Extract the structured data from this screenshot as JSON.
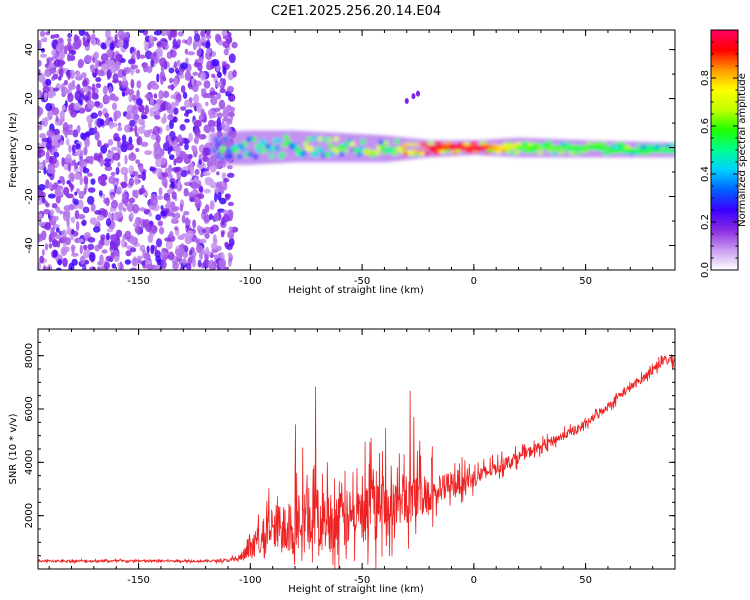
{
  "chart_data": [
    {
      "type": "heatmap",
      "title": "C2E1.2025.256.20.14.E04",
      "xlabel": "Height of straight line (km)",
      "ylabel": "Frequency (Hz)",
      "xlim": [
        -195,
        90
      ],
      "ylim": [
        -50,
        48
      ],
      "xticks": [
        -150,
        -100,
        -50,
        0,
        50
      ],
      "yticks": [
        -40,
        -20,
        0,
        20,
        40
      ],
      "noise_region": {
        "x": [
          -195,
          -107
        ],
        "y": [
          -50,
          48
        ]
      },
      "signal_band": [
        {
          "x": -118,
          "y0": -7,
          "y1": 6,
          "amp": 0.25
        },
        {
          "x": -100,
          "y0": -7,
          "y1": 7,
          "amp": 0.35
        },
        {
          "x": -80,
          "y0": -6,
          "y1": 7,
          "amp": 0.4
        },
        {
          "x": -60,
          "y0": -6,
          "y1": 6,
          "amp": 0.4
        },
        {
          "x": -40,
          "y0": -6,
          "y1": 5,
          "amp": 0.45
        },
        {
          "x": -20,
          "y0": -4,
          "y1": 3,
          "amp": 0.9
        },
        {
          "x": 0,
          "y0": -3,
          "y1": 3,
          "amp": 0.95
        },
        {
          "x": 20,
          "y0": -4,
          "y1": 4,
          "amp": 0.6
        },
        {
          "x": 50,
          "y0": -4,
          "y1": 3,
          "amp": 0.55
        },
        {
          "x": 90,
          "y0": -4,
          "y1": 2,
          "amp": 0.5
        }
      ],
      "colorbar": {
        "label": "Normalized spectral amplitude",
        "range": [
          0.0,
          1.0
        ],
        "ticks": [
          0.0,
          0.2,
          0.4,
          0.6,
          0.8
        ],
        "tick_labels": [
          "0.0",
          "0.2",
          "0.4",
          "0.6",
          "0.8"
        ],
        "colors": [
          "#ffffff",
          "#c99af0",
          "#8a2be2",
          "#3a00ff",
          "#0060ff",
          "#00d0ff",
          "#00ff90",
          "#20ff00",
          "#c0ff00",
          "#ffff00",
          "#ff9900",
          "#ff0000",
          "#ff0066"
        ]
      }
    },
    {
      "type": "line",
      "xlabel": "Height of straight line (km)",
      "ylabel": "SNR (10 * v/v)",
      "xlim": [
        -195,
        90
      ],
      "ylim": [
        0,
        9000
      ],
      "xticks": [
        -150,
        -100,
        -50,
        0,
        50
      ],
      "yticks": [
        2000,
        4000,
        6000,
        8000
      ],
      "color": "#ee2222",
      "series": [
        {
          "name": "SNR",
          "x": [
            -195,
            -180,
            -160,
            -140,
            -120,
            -110,
            -105,
            -100,
            -95,
            -90,
            -85,
            -80,
            -75,
            -70,
            -65,
            -60,
            -55,
            -50,
            -45,
            -40,
            -35,
            -30,
            -25,
            -20,
            -15,
            -10,
            -5,
            0,
            5,
            10,
            15,
            20,
            25,
            30,
            35,
            40,
            45,
            50,
            55,
            60,
            65,
            70,
            75,
            80,
            85,
            90
          ],
          "values": [
            300,
            300,
            300,
            300,
            300,
            320,
            400,
            700,
            1300,
            1500,
            1600,
            1800,
            1900,
            1900,
            1900,
            1800,
            1900,
            2000,
            2100,
            2200,
            2400,
            2600,
            2700,
            2900,
            2900,
            3200,
            3300,
            3400,
            3600,
            3800,
            4000,
            4200,
            4400,
            4600,
            4800,
            5000,
            5200,
            5400,
            5800,
            6100,
            6500,
            6800,
            7100,
            7500,
            7800,
            7900
          ],
          "noise": [
            80,
            80,
            80,
            80,
            80,
            100,
            300,
            700,
            1400,
            1800,
            2000,
            2200,
            2300,
            2300,
            2300,
            2200,
            2200,
            2200,
            2200,
            2100,
            2000,
            1900,
            1800,
            1500,
            1200,
            1000,
            900,
            700,
            600,
            550,
            500,
            450,
            400,
            380,
            350,
            330,
            320,
            300,
            300,
            300,
            300,
            300,
            300,
            300,
            350,
            400
          ]
        }
      ]
    }
  ]
}
